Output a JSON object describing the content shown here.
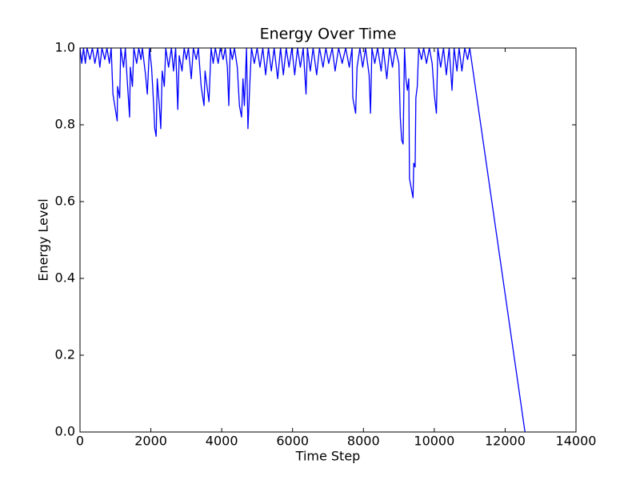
{
  "chart_data": {
    "type": "line",
    "title": "Energy Over Time",
    "xlabel": "Time Step",
    "ylabel": "Energy Level",
    "xlim": [
      0,
      14000
    ],
    "ylim": [
      0,
      1
    ],
    "xticks": [
      0,
      2000,
      4000,
      6000,
      8000,
      10000,
      12000,
      14000
    ],
    "yticks": [
      {
        "value": 0,
        "label": "0.0"
      },
      {
        "value": 0.2,
        "label": "0.2"
      },
      {
        "value": 0.4,
        "label": "0.4"
      },
      {
        "value": 0.6,
        "label": "0.6"
      },
      {
        "value": 0.8,
        "label": "0.8"
      },
      {
        "value": 1,
        "label": "1.0"
      }
    ],
    "grid": false,
    "series": [
      {
        "color": "#0000ff",
        "x": [
          0,
          50,
          100,
          150,
          200,
          280,
          350,
          420,
          500,
          560,
          620,
          700,
          760,
          830,
          880,
          930,
          1050,
          1060,
          1120,
          1150,
          1230,
          1280,
          1330,
          1400,
          1420,
          1480,
          1520,
          1600,
          1660,
          1720,
          1760,
          1850,
          1900,
          1960,
          2020,
          2080,
          2110,
          2150,
          2180,
          2240,
          2280,
          2320,
          2380,
          2420,
          2500,
          2580,
          2640,
          2700,
          2760,
          2800,
          2880,
          2940,
          3000,
          3060,
          3140,
          3200,
          3280,
          3340,
          3420,
          3500,
          3530,
          3640,
          3700,
          3760,
          3820,
          3900,
          3960,
          4040,
          4100,
          4160,
          4200,
          4240,
          4300,
          4360,
          4440,
          4500,
          4560,
          4600,
          4640,
          4700,
          4740,
          4800,
          4840,
          4920,
          5000,
          5080,
          5160,
          5240,
          5320,
          5400,
          5480,
          5580,
          5660,
          5740,
          5820,
          5900,
          5980,
          6060,
          6140,
          6220,
          6300,
          6380,
          6420,
          6500,
          6580,
          6680,
          6760,
          6860,
          6940,
          7020,
          7120,
          7200,
          7300,
          7400,
          7500,
          7600,
          7680,
          7700,
          7780,
          7820,
          7900,
          7980,
          8060,
          8160,
          8200,
          8240,
          8320,
          8400,
          8500,
          8560,
          8660,
          8740,
          8820,
          8900,
          9000,
          9040,
          9080,
          9120,
          9160,
          9200,
          9240,
          9280,
          9300,
          9360,
          9400,
          9420,
          9460,
          9480,
          9520,
          9560,
          9640,
          9700,
          9780,
          9860,
          9940,
          10000,
          10060,
          10100,
          10180,
          10260,
          10340,
          10420,
          10500,
          10560,
          10640,
          10700,
          10780,
          10860,
          10940,
          11000,
          12560
        ],
        "values": [
          1.0,
          0.96,
          1.0,
          0.96,
          1.0,
          0.97,
          1.0,
          0.96,
          1.0,
          0.95,
          1.0,
          0.97,
          1.0,
          0.96,
          1.0,
          0.88,
          0.81,
          0.9,
          0.87,
          1.0,
          0.95,
          1.0,
          0.92,
          0.82,
          0.95,
          0.9,
          1.0,
          0.96,
          1.0,
          0.97,
          1.0,
          0.93,
          0.88,
          1.0,
          0.95,
          0.85,
          0.79,
          0.77,
          0.92,
          0.85,
          0.79,
          0.94,
          0.9,
          1.0,
          0.95,
          1.0,
          0.94,
          1.0,
          0.84,
          0.98,
          0.94,
          1.0,
          0.97,
          1.0,
          0.92,
          1.0,
          0.97,
          1.0,
          0.9,
          0.85,
          0.94,
          0.86,
          1.0,
          0.96,
          1.0,
          0.96,
          1.0,
          0.97,
          1.0,
          0.95,
          0.85,
          1.0,
          0.97,
          1.0,
          0.95,
          0.85,
          0.82,
          0.92,
          0.85,
          1.0,
          0.79,
          0.92,
          1.0,
          0.96,
          1.0,
          0.95,
          1.0,
          0.93,
          1.0,
          0.94,
          1.0,
          0.92,
          1.0,
          0.93,
          1.0,
          0.95,
          1.0,
          0.93,
          1.0,
          0.95,
          1.0,
          0.88,
          1.0,
          0.94,
          1.0,
          0.93,
          1.0,
          0.95,
          1.0,
          0.96,
          1.0,
          0.94,
          1.0,
          0.96,
          1.0,
          0.95,
          1.0,
          0.87,
          0.83,
          0.95,
          1.0,
          0.95,
          1.0,
          0.93,
          0.83,
          1.0,
          0.96,
          1.0,
          0.94,
          1.0,
          0.92,
          1.0,
          0.95,
          1.0,
          0.96,
          0.82,
          0.76,
          0.75,
          1.0,
          0.92,
          0.89,
          0.92,
          0.66,
          0.63,
          0.61,
          0.7,
          0.69,
          0.87,
          0.9,
          1.0,
          0.97,
          1.0,
          0.96,
          1.0,
          0.96,
          0.88,
          0.83,
          1.0,
          0.95,
          1.0,
          0.93,
          1.0,
          0.89,
          1.0,
          0.94,
          1.0,
          0.94,
          1.0,
          0.97,
          1.0,
          0.0
        ]
      }
    ]
  }
}
